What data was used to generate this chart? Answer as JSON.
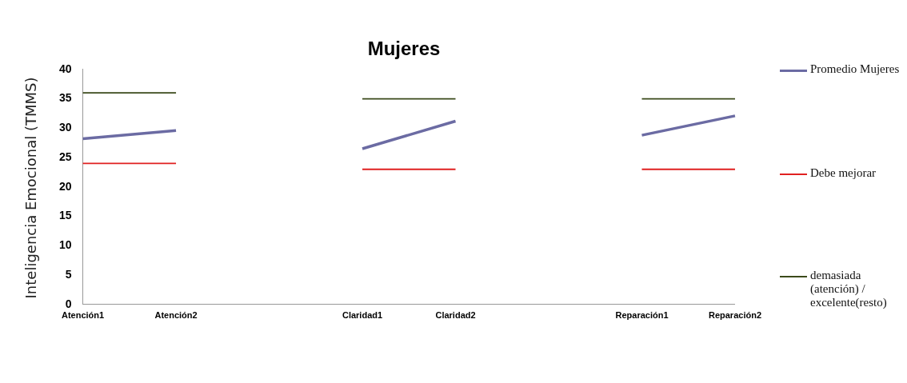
{
  "chart_data": {
    "type": "line",
    "title": "Mujeres",
    "ylabel": "Inteligencia Emocional (TMMS)",
    "categories": [
      "Atención1",
      "Atención2",
      null,
      "Claridad1",
      "Claridad2",
      null,
      "Reparación1",
      "Reparación2"
    ],
    "series": [
      {
        "name": "Promedio Mujeres",
        "color": "#6b6ba3",
        "values": [
          28.2,
          29.6,
          null,
          26.5,
          31.2,
          null,
          28.8,
          32.1
        ]
      },
      {
        "name": "Debe mejorar",
        "color": "#e02020",
        "values": [
          24,
          24,
          null,
          23,
          23,
          null,
          23,
          23
        ]
      },
      {
        "name": "demasiada (atención) / excelente(resto)",
        "color": "#3b4a1a",
        "values": [
          36,
          36,
          null,
          35,
          35,
          null,
          35,
          35
        ]
      }
    ],
    "ylim": [
      0,
      40
    ],
    "yticks": [
      0,
      5,
      10,
      15,
      20,
      25,
      30,
      35,
      40
    ],
    "grid": false,
    "legend": "right",
    "marker": "none",
    "line_style": "solid"
  }
}
